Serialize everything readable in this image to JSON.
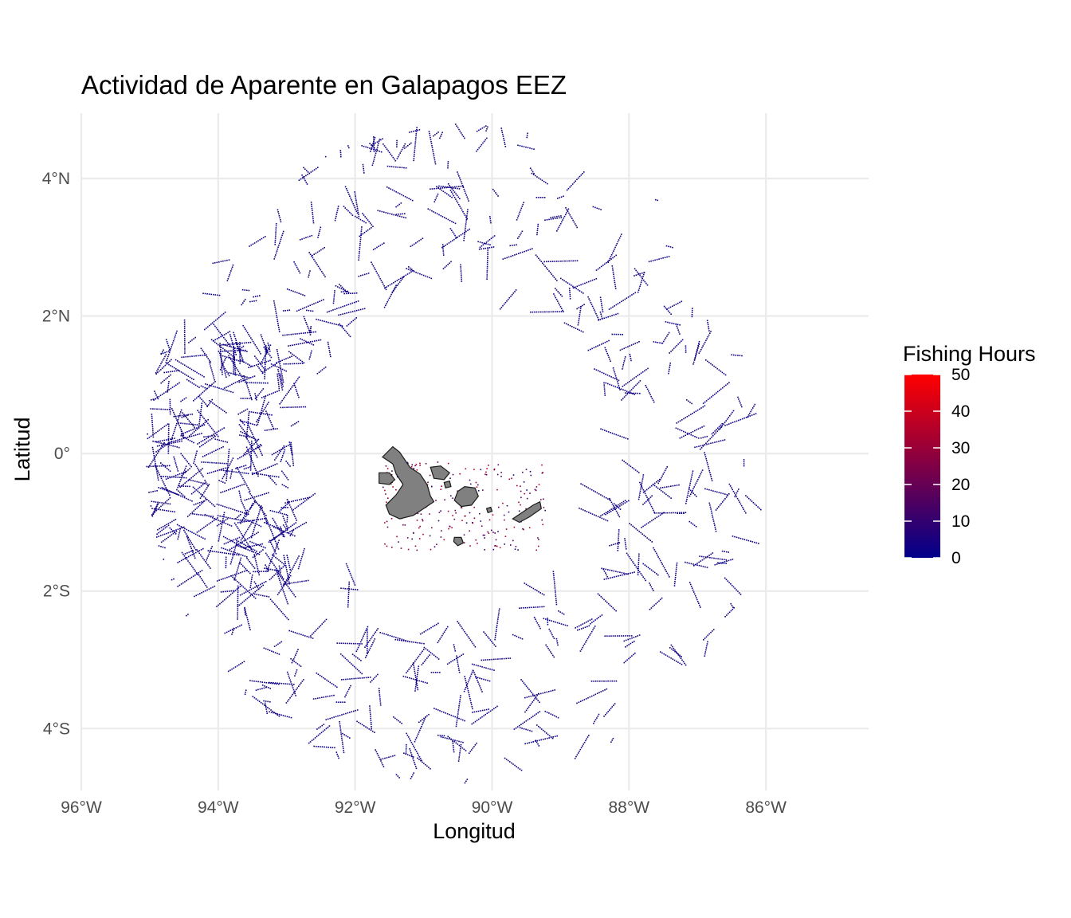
{
  "chart_data": {
    "type": "scatter",
    "title": "Actividad de Aparente en Galapagos EEZ",
    "xlabel": "Longitud",
    "ylabel": "Latitud",
    "xlim": [
      -96,
      -84.5
    ],
    "ylim": [
      -4.9,
      4.95
    ],
    "x_ticks": [
      -96,
      -94,
      -92,
      -90,
      -88,
      -86
    ],
    "x_tick_labels": [
      "96°W",
      "94°W",
      "92°W",
      "90°W",
      "88°W",
      "86°W"
    ],
    "y_ticks": [
      4,
      2,
      0,
      -2,
      -4
    ],
    "y_tick_labels": [
      "4°N",
      "2°N",
      "0°",
      "2°S",
      "4°S"
    ],
    "grid": true,
    "eez_center": [
      -90.5,
      0.0
    ],
    "eez_radius_deg": 4.8,
    "legend": {
      "title": "Fishing Hours",
      "position": "right",
      "min": 0,
      "max": 50,
      "ticks": [
        50,
        40,
        30,
        20,
        10,
        0
      ],
      "tick_labels": [
        "50",
        "40",
        "30",
        "20",
        "10",
        "0"
      ],
      "color_low": "#00008b",
      "color_high": "#ff0000"
    },
    "islands": [
      {
        "name": "Isabela",
        "polygon": [
          [
            -91.6,
            -0.05
          ],
          [
            -91.45,
            0.1
          ],
          [
            -91.35,
            0.02
          ],
          [
            -91.2,
            -0.2
          ],
          [
            -91.05,
            -0.3
          ],
          [
            -90.95,
            -0.45
          ],
          [
            -90.9,
            -0.62
          ],
          [
            -90.85,
            -0.7
          ],
          [
            -91.0,
            -0.8
          ],
          [
            -91.15,
            -0.9
          ],
          [
            -91.35,
            -0.95
          ],
          [
            -91.5,
            -0.88
          ],
          [
            -91.55,
            -0.75
          ],
          [
            -91.4,
            -0.6
          ],
          [
            -91.3,
            -0.45
          ],
          [
            -91.4,
            -0.3
          ],
          [
            -91.45,
            -0.15
          ]
        ]
      },
      {
        "name": "Fernandina",
        "polygon": [
          [
            -91.65,
            -0.28
          ],
          [
            -91.5,
            -0.28
          ],
          [
            -91.42,
            -0.38
          ],
          [
            -91.5,
            -0.45
          ],
          [
            -91.65,
            -0.43
          ]
        ]
      },
      {
        "name": "Santiago",
        "polygon": [
          [
            -90.9,
            -0.2
          ],
          [
            -90.75,
            -0.18
          ],
          [
            -90.62,
            -0.28
          ],
          [
            -90.7,
            -0.38
          ],
          [
            -90.85,
            -0.36
          ]
        ]
      },
      {
        "name": "Pinzon",
        "polygon": [
          [
            -90.7,
            -0.42
          ],
          [
            -90.62,
            -0.4
          ],
          [
            -90.6,
            -0.48
          ],
          [
            -90.68,
            -0.5
          ]
        ]
      },
      {
        "name": "Santa Cruz",
        "polygon": [
          [
            -90.5,
            -0.55
          ],
          [
            -90.4,
            -0.48
          ],
          [
            -90.25,
            -0.5
          ],
          [
            -90.2,
            -0.62
          ],
          [
            -90.3,
            -0.75
          ],
          [
            -90.45,
            -0.77
          ],
          [
            -90.55,
            -0.68
          ]
        ]
      },
      {
        "name": "Santa Fe",
        "polygon": [
          [
            -90.08,
            -0.8
          ],
          [
            -90.02,
            -0.78
          ],
          [
            -90.0,
            -0.84
          ],
          [
            -90.06,
            -0.86
          ]
        ]
      },
      {
        "name": "San Cristobal",
        "polygon": [
          [
            -89.7,
            -0.95
          ],
          [
            -89.55,
            -0.85
          ],
          [
            -89.4,
            -0.75
          ],
          [
            -89.3,
            -0.7
          ],
          [
            -89.28,
            -0.8
          ],
          [
            -89.45,
            -0.92
          ],
          [
            -89.6,
            -1.0
          ]
        ]
      },
      {
        "name": "Floreana",
        "polygon": [
          [
            -90.55,
            -1.22
          ],
          [
            -90.45,
            -1.22
          ],
          [
            -90.42,
            -1.3
          ],
          [
            -90.5,
            -1.34
          ],
          [
            -90.56,
            -1.28
          ]
        ]
      }
    ]
  }
}
